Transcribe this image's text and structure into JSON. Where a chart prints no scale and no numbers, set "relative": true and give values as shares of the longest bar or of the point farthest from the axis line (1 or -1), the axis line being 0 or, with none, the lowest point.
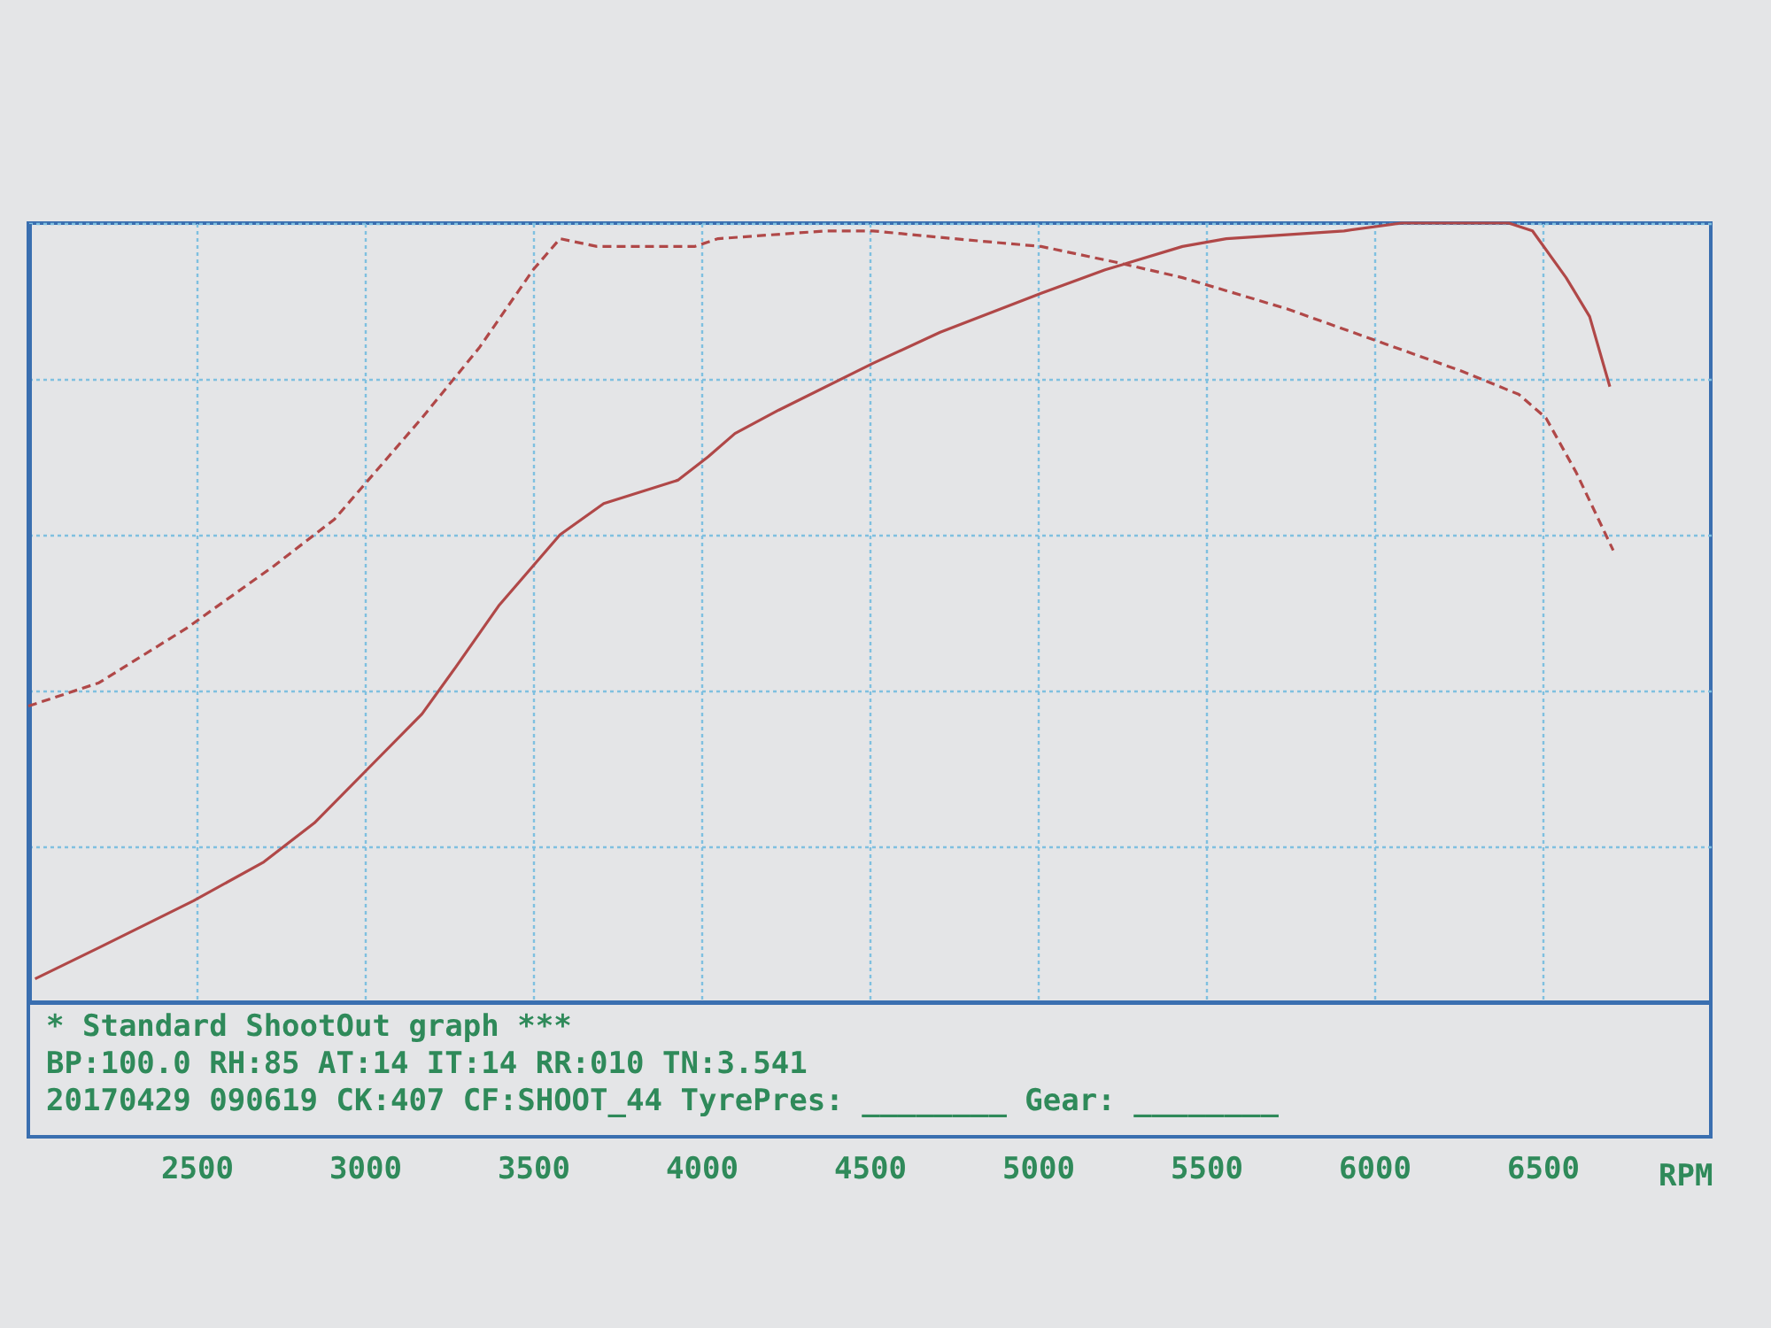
{
  "chart_data": {
    "type": "line",
    "relative": true,
    "xlabel": "RPM",
    "xlim": [
      2000,
      7000
    ],
    "xticks": [
      2500,
      3000,
      3500,
      4000,
      4500,
      5000,
      5500,
      6000,
      6500
    ],
    "grid": true,
    "annotations": [
      "* Standard ShootOut graph ***",
      "BP:100.0 RH:85 AT:14 IT:14  RR:010 TN:3.541",
      "20170429 090619 CK:407 CF:SHOOT_44 TyrePres: ________ Gear: ________"
    ],
    "series": [
      {
        "color": "#b04848",
        "line_style": "solid",
        "x": [
          2020,
          2210,
          2490,
          2700,
          2850,
          3010,
          3170,
          3270,
          3400,
          3500,
          3580,
          3710,
          3930,
          4020,
          4100,
          4230,
          4510,
          4710,
          5010,
          5200,
          5430,
          5560,
          5910,
          6080,
          6400,
          6470,
          6570,
          6640,
          6700
        ],
        "values": [
          0.03,
          0.07,
          0.13,
          0.18,
          0.23,
          0.3,
          0.37,
          0.43,
          0.51,
          0.56,
          0.6,
          0.64,
          0.67,
          0.7,
          0.73,
          0.76,
          0.82,
          0.86,
          0.91,
          0.94,
          0.97,
          0.98,
          0.99,
          1,
          1,
          0.99,
          0.93,
          0.88,
          0.79
        ]
      },
      {
        "color": "#b04848",
        "line_style": "dashed",
        "x": [
          2000,
          2210,
          2470,
          2730,
          2910,
          3010,
          3170,
          3340,
          3500,
          3580,
          3690,
          3840,
          3980,
          4050,
          4370,
          4510,
          4750,
          5010,
          5230,
          5430,
          5740,
          6000,
          6260,
          6430,
          6510,
          6600,
          6710
        ],
        "values": [
          0.38,
          0.41,
          0.48,
          0.56,
          0.62,
          0.67,
          0.75,
          0.84,
          0.94,
          0.98,
          0.97,
          0.97,
          0.97,
          0.98,
          0.99,
          0.99,
          0.98,
          0.97,
          0.95,
          0.93,
          0.89,
          0.85,
          0.81,
          0.78,
          0.75,
          0.68,
          0.58
        ]
      }
    ]
  }
}
